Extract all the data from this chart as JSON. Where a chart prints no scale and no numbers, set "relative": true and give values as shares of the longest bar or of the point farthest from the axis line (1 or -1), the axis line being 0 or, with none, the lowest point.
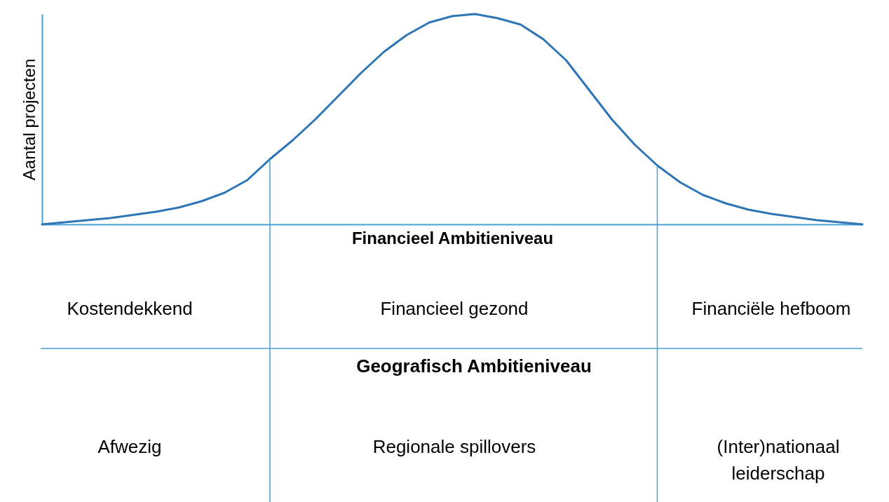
{
  "chart_data": {
    "type": "line",
    "relative": true,
    "xlabel": "Financieel Ambitieniveau",
    "ylabel": "Aantal projecten",
    "marker": "none",
    "line_style": "solid",
    "categories": [
      null,
      null,
      null,
      null,
      null,
      null,
      null,
      null,
      null,
      null,
      null,
      null,
      null,
      null,
      null,
      null,
      null,
      null,
      null,
      null,
      null,
      null,
      null,
      null,
      null,
      null,
      null,
      null,
      null,
      null,
      null,
      null,
      null,
      null,
      null,
      null,
      null
    ],
    "series": [
      {
        "color": "#2e75b6",
        "values": [
          0,
          0.01,
          0.02,
          0.03,
          0.045,
          0.06,
          0.08,
          0.11,
          0.15,
          0.21,
          0.31,
          0.4,
          0.5,
          0.61,
          0.72,
          0.82,
          0.9,
          0.96,
          0.99,
          1,
          0.98,
          0.95,
          0.88,
          0.78,
          0.64,
          0.5,
          0.38,
          0.28,
          0.2,
          0.14,
          0.1,
          0.07,
          0.05,
          0.035,
          0.02,
          0.01,
          0
        ]
      }
    ],
    "annotations": [
      "Kostendekkend",
      "Financieel gezond",
      "Financiële hefboom",
      "Geografisch Ambitieniveau",
      "Afwezig",
      "Regionale spillovers",
      "(Inter)nationaal leiderschap"
    ]
  }
}
